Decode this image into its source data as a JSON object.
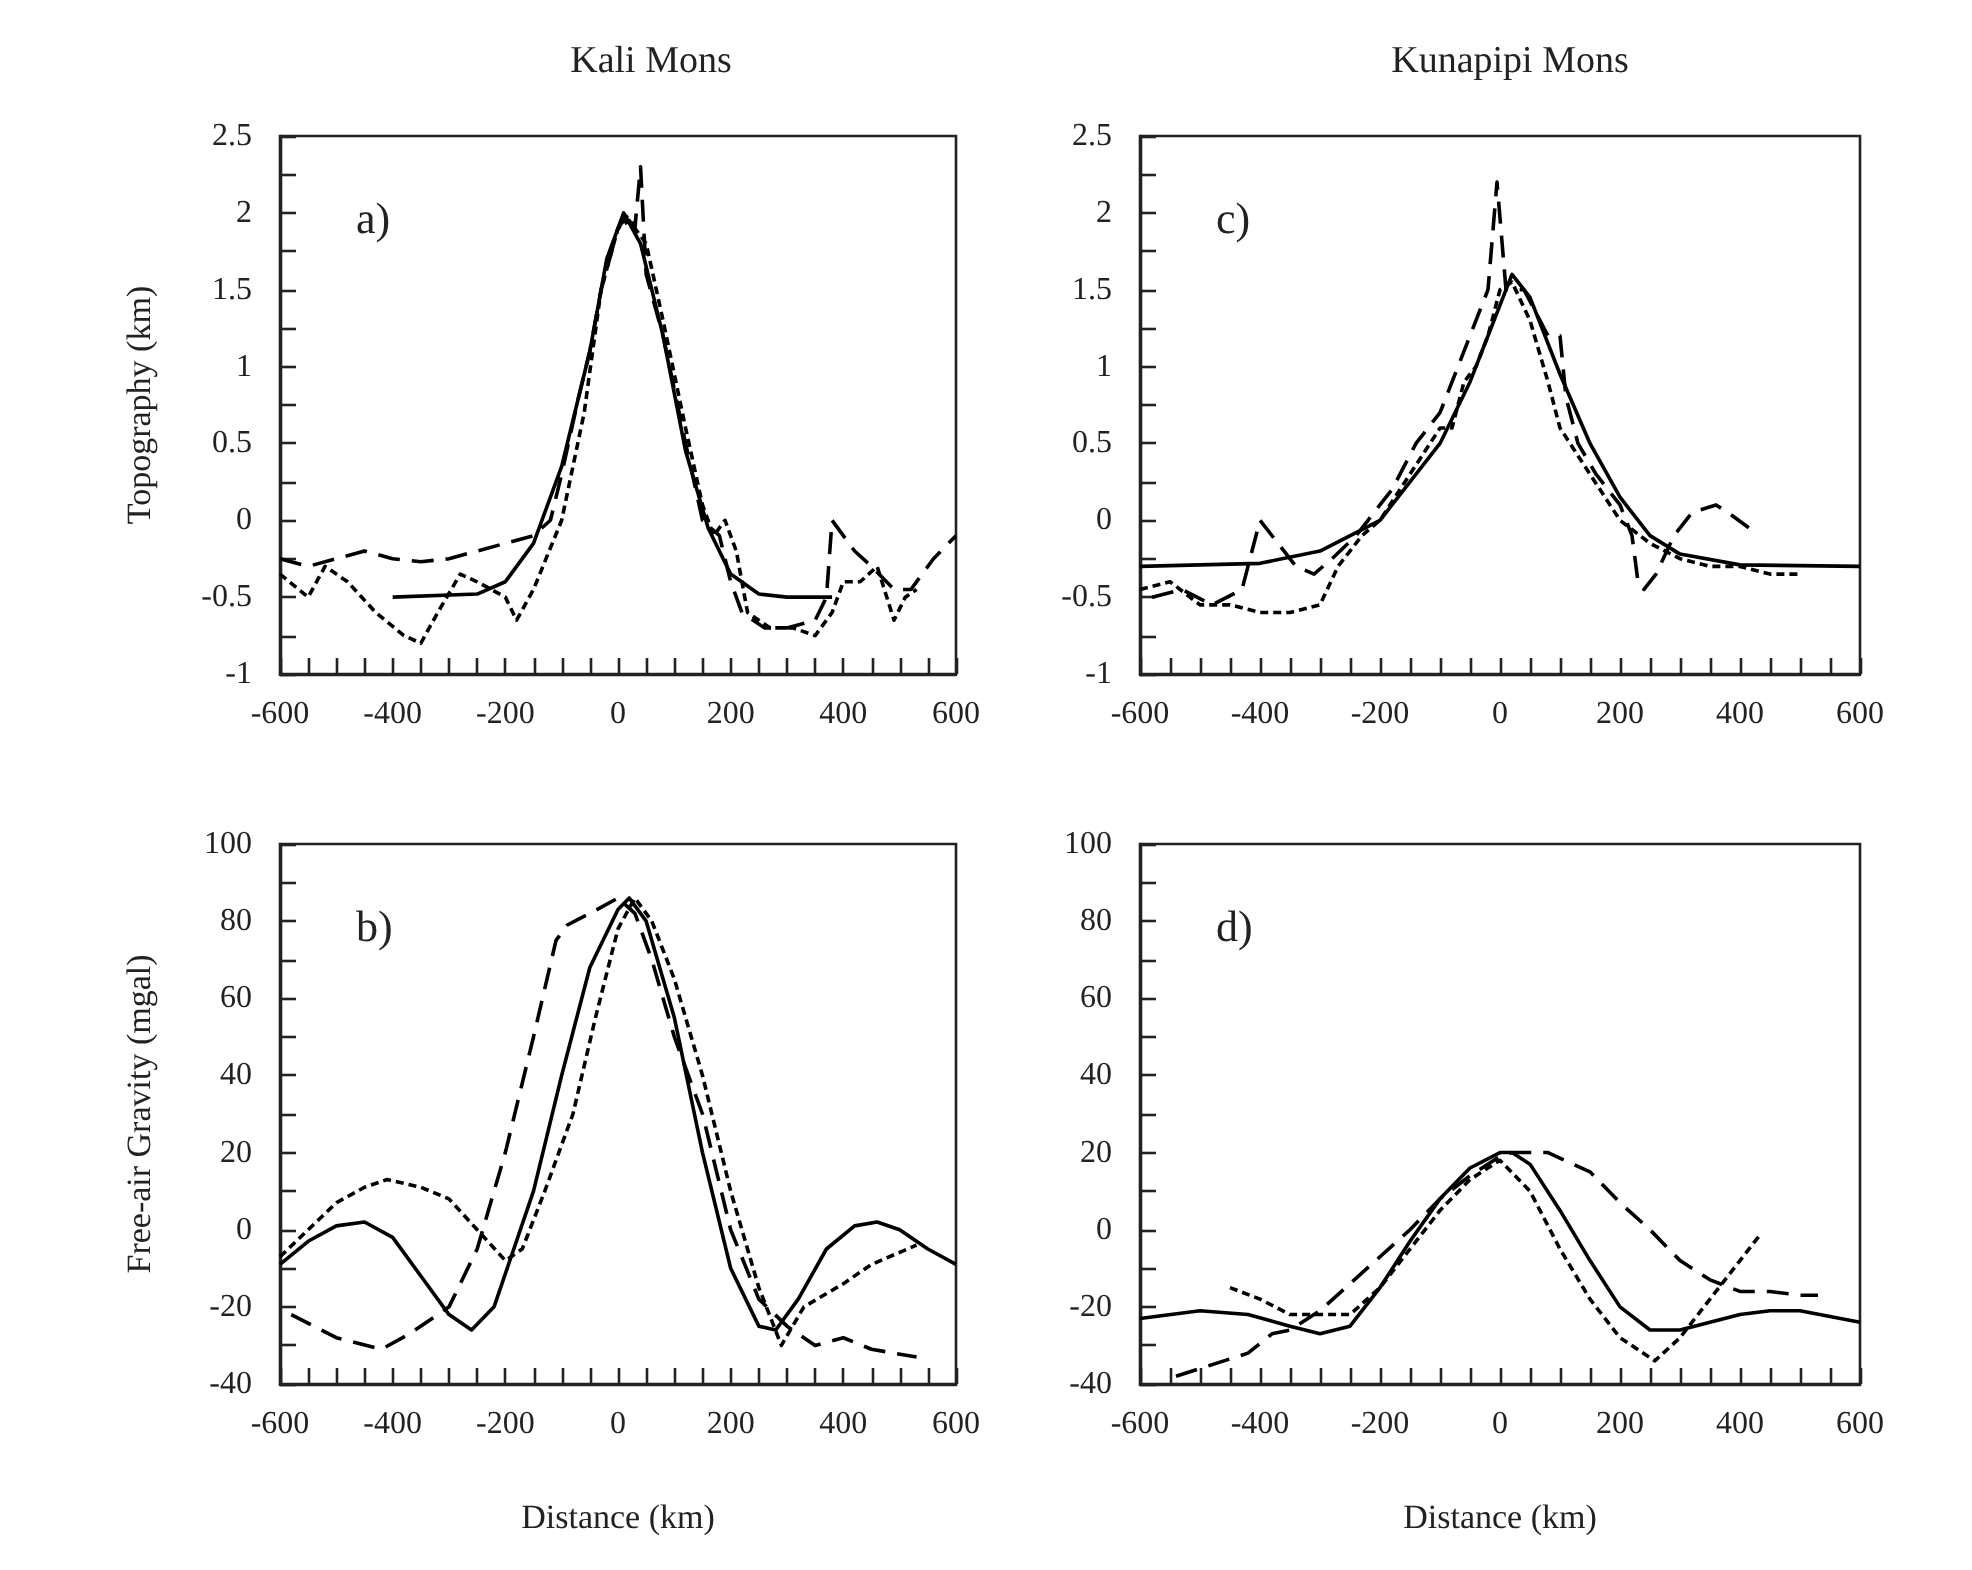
{
  "chart_data": [
    {
      "type": "line",
      "title": "Kali Mons",
      "ylabel": "Topography (km)",
      "annotations": [
        "a)"
      ],
      "xlim": [
        -600,
        600
      ],
      "ylim": [
        -1,
        2.5
      ],
      "xticks": [
        -600,
        {
          "value": -550,
          "label": null
        },
        {
          "value": -500,
          "label": null
        },
        {
          "value": -450,
          "label": null
        },
        -400,
        {
          "value": -350,
          "label": null
        },
        {
          "value": -300,
          "label": null
        },
        {
          "value": -250,
          "label": null
        },
        -200,
        {
          "value": -150,
          "label": null
        },
        {
          "value": -100,
          "label": null
        },
        {
          "value": -50,
          "label": null
        },
        0,
        {
          "value": 50,
          "label": null
        },
        {
          "value": 100,
          "label": null
        },
        {
          "value": 150,
          "label": null
        },
        200,
        {
          "value": 250,
          "label": null
        },
        {
          "value": 300,
          "label": null
        },
        {
          "value": 350,
          "label": null
        },
        400,
        {
          "value": 450,
          "label": null
        },
        {
          "value": 500,
          "label": null
        },
        {
          "value": 550,
          "label": null
        },
        600
      ],
      "yticks": [
        -1,
        {
          "value": -0.75,
          "label": null
        },
        -0.5,
        {
          "value": -0.25,
          "label": null
        },
        0,
        {
          "value": 0.25,
          "label": null
        },
        0.5,
        {
          "value": 0.75,
          "label": null
        },
        1,
        {
          "value": 1.25,
          "label": null
        },
        1.5,
        {
          "value": 1.75,
          "label": null
        },
        2,
        {
          "value": 2.25,
          "label": null
        },
        2.5
      ],
      "grid": false,
      "marker": "none",
      "series": [
        {
          "color": "#000000",
          "line_style": "solid",
          "x": [
            -400,
            -250,
            -200,
            -150,
            -100,
            -50,
            -20,
            10,
            40,
            80,
            120,
            160,
            200,
            250,
            300,
            380
          ],
          "values": [
            -0.5,
            -0.48,
            -0.4,
            -0.15,
            0.35,
            1.1,
            1.7,
            2.0,
            1.8,
            1.2,
            0.45,
            -0.05,
            -0.35,
            -0.48,
            -0.5,
            -0.5
          ]
        },
        {
          "color": "#000000",
          "line_style": "dashed",
          "x": [
            -600,
            -550,
            -500,
            -450,
            -400,
            -350,
            -300,
            -250,
            -200,
            -150,
            -120,
            -100,
            -70,
            -50,
            -30,
            0,
            20,
            30,
            40,
            50,
            80,
            120,
            150,
            180,
            200,
            220,
            260,
            300,
            350,
            370,
            380,
            420,
            450,
            490,
            520,
            560,
            600
          ],
          "values": [
            -0.25,
            -0.3,
            -0.25,
            -0.2,
            -0.25,
            -0.27,
            -0.25,
            -0.2,
            -0.15,
            -0.1,
            0.0,
            0.3,
            0.8,
            1.1,
            1.5,
            1.9,
            2.0,
            1.9,
            2.3,
            1.6,
            1.2,
            0.5,
            0.0,
            -0.1,
            -0.4,
            -0.6,
            -0.7,
            -0.7,
            -0.65,
            -0.5,
            0.0,
            -0.2,
            -0.3,
            -0.45,
            -0.45,
            -0.25,
            -0.1
          ]
        },
        {
          "color": "#000000",
          "line_style": "dotted",
          "x": [
            -600,
            -550,
            -520,
            -480,
            -430,
            -380,
            -350,
            -320,
            -280,
            -250,
            -200,
            -180,
            -150,
            -100,
            -60,
            -30,
            0,
            20,
            50,
            80,
            120,
            150,
            170,
            190,
            210,
            230,
            270,
            310,
            350,
            380,
            400,
            430,
            460,
            490,
            510,
            530
          ],
          "values": [
            -0.35,
            -0.5,
            -0.3,
            -0.4,
            -0.6,
            -0.75,
            -0.8,
            -0.6,
            -0.35,
            -0.4,
            -0.5,
            -0.65,
            -0.45,
            0.0,
            0.7,
            1.5,
            1.9,
            1.95,
            1.8,
            1.3,
            0.6,
            0.1,
            -0.1,
            0.0,
            -0.2,
            -0.6,
            -0.7,
            -0.7,
            -0.75,
            -0.6,
            -0.4,
            -0.4,
            -0.3,
            -0.65,
            -0.5,
            -0.45
          ]
        }
      ]
    },
    {
      "type": "line",
      "title": "Kunapipi Mons",
      "annotations": [
        "c)"
      ],
      "xlim": [
        -600,
        600
      ],
      "ylim": [
        -1,
        2.5
      ],
      "xticks": [
        -600,
        {
          "value": -550,
          "label": null
        },
        {
          "value": -500,
          "label": null
        },
        {
          "value": -450,
          "label": null
        },
        -400,
        {
          "value": -350,
          "label": null
        },
        {
          "value": -300,
          "label": null
        },
        {
          "value": -250,
          "label": null
        },
        -200,
        {
          "value": -150,
          "label": null
        },
        {
          "value": -100,
          "label": null
        },
        {
          "value": -50,
          "label": null
        },
        0,
        {
          "value": 50,
          "label": null
        },
        {
          "value": 100,
          "label": null
        },
        {
          "value": 150,
          "label": null
        },
        200,
        {
          "value": 250,
          "label": null
        },
        {
          "value": 300,
          "label": null
        },
        {
          "value": 350,
          "label": null
        },
        400,
        {
          "value": 450,
          "label": null
        },
        {
          "value": 500,
          "label": null
        },
        {
          "value": 550,
          "label": null
        },
        600
      ],
      "yticks": [
        -1,
        {
          "value": -0.75,
          "label": null
        },
        -0.5,
        {
          "value": -0.25,
          "label": null
        },
        0,
        {
          "value": 0.25,
          "label": null
        },
        0.5,
        {
          "value": 0.75,
          "label": null
        },
        1,
        {
          "value": 1.25,
          "label": null
        },
        1.5,
        {
          "value": 1.75,
          "label": null
        },
        2,
        {
          "value": 2.25,
          "label": null
        },
        2.5
      ],
      "grid": false,
      "marker": "none",
      "series": [
        {
          "color": "#000000",
          "line_style": "solid",
          "x": [
            -600,
            -400,
            -300,
            -200,
            -100,
            -50,
            0,
            20,
            50,
            100,
            150,
            200,
            250,
            300,
            400,
            600
          ],
          "values": [
            -0.3,
            -0.28,
            -0.2,
            0.0,
            0.5,
            0.9,
            1.4,
            1.6,
            1.45,
            0.95,
            0.5,
            0.15,
            -0.1,
            -0.22,
            -0.29,
            -0.3
          ]
        },
        {
          "color": "#000000",
          "line_style": "dashed",
          "x": [
            -580,
            -530,
            -480,
            -430,
            -400,
            -370,
            -340,
            -310,
            -280,
            -240,
            -220,
            -180,
            -140,
            -100,
            -80,
            -50,
            -20,
            -5,
            10,
            40,
            80,
            100,
            110,
            130,
            160,
            200,
            220,
            230,
            240,
            260,
            290,
            320,
            360,
            380,
            415
          ],
          "values": [
            -0.5,
            -0.45,
            -0.55,
            -0.45,
            0.0,
            -0.15,
            -0.3,
            -0.35,
            -0.25,
            -0.1,
            0.0,
            0.2,
            0.5,
            0.7,
            0.9,
            1.2,
            1.5,
            2.2,
            1.5,
            1.5,
            1.2,
            1.2,
            0.8,
            0.5,
            0.3,
            0.1,
            -0.1,
            -0.4,
            -0.45,
            -0.35,
            -0.1,
            0.05,
            0.1,
            0.05,
            -0.05
          ]
        },
        {
          "color": "#000000",
          "line_style": "dotted",
          "x": [
            -600,
            -550,
            -500,
            -450,
            -400,
            -350,
            -300,
            -270,
            -250,
            -230,
            -200,
            -150,
            -100,
            -80,
            -60,
            -40,
            -20,
            0,
            20,
            50,
            80,
            100,
            150,
            200,
            250,
            300,
            350,
            400,
            450,
            500
          ],
          "values": [
            -0.45,
            -0.4,
            -0.55,
            -0.55,
            -0.6,
            -0.6,
            -0.55,
            -0.3,
            -0.2,
            -0.1,
            0.0,
            0.3,
            0.6,
            0.6,
            0.9,
            1.0,
            1.2,
            1.5,
            1.55,
            1.3,
            0.9,
            0.6,
            0.3,
            0.0,
            -0.15,
            -0.25,
            -0.3,
            -0.3,
            -0.35,
            -0.35
          ]
        }
      ]
    },
    {
      "type": "line",
      "xlabel": "Distance (km)",
      "ylabel": "Free-air Gravity (mgal)",
      "annotations": [
        "b)"
      ],
      "xlim": [
        -600,
        600
      ],
      "ylim": [
        -40,
        100
      ],
      "xticks": [
        -600,
        {
          "value": -550,
          "label": null
        },
        {
          "value": -500,
          "label": null
        },
        {
          "value": -450,
          "label": null
        },
        -400,
        {
          "value": -350,
          "label": null
        },
        {
          "value": -300,
          "label": null
        },
        {
          "value": -250,
          "label": null
        },
        -200,
        {
          "value": -150,
          "label": null
        },
        {
          "value": -100,
          "label": null
        },
        {
          "value": -50,
          "label": null
        },
        0,
        {
          "value": 50,
          "label": null
        },
        {
          "value": 100,
          "label": null
        },
        {
          "value": 150,
          "label": null
        },
        200,
        {
          "value": 250,
          "label": null
        },
        {
          "value": 300,
          "label": null
        },
        {
          "value": 350,
          "label": null
        },
        400,
        {
          "value": 450,
          "label": null
        },
        {
          "value": 500,
          "label": null
        },
        {
          "value": 550,
          "label": null
        },
        600
      ],
      "yticks": [
        -40,
        {
          "value": -30,
          "label": null
        },
        -20,
        {
          "value": -10,
          "label": null
        },
        0,
        {
          "value": 10,
          "label": null
        },
        20,
        {
          "value": 30,
          "label": null
        },
        40,
        {
          "value": 50,
          "label": null
        },
        60,
        {
          "value": 70,
          "label": null
        },
        80,
        {
          "value": 90,
          "label": null
        },
        100
      ],
      "grid": false,
      "marker": "none",
      "series": [
        {
          "color": "#000000",
          "line_style": "solid",
          "x": [
            -600,
            -550,
            -500,
            -450,
            -400,
            -350,
            -300,
            -260,
            -220,
            -150,
            -100,
            -50,
            0,
            20,
            50,
            100,
            150,
            200,
            250,
            280,
            320,
            370,
            420,
            460,
            500,
            550,
            600
          ],
          "values": [
            -9,
            -3,
            1,
            2,
            -2,
            -12,
            -22,
            -26,
            -20,
            10,
            40,
            68,
            83,
            86,
            80,
            55,
            20,
            -10,
            -25,
            -26,
            -18,
            -5,
            1,
            2,
            0,
            -5,
            -9
          ]
        },
        {
          "color": "#000000",
          "line_style": "dashed",
          "x": [
            -580,
            -500,
            -420,
            -370,
            -300,
            -250,
            -200,
            -150,
            -110,
            -90,
            -50,
            0,
            30,
            60,
            100,
            150,
            200,
            250,
            300,
            350,
            400,
            450,
            530
          ],
          "values": [
            -22,
            -28,
            -31,
            -27,
            -20,
            -5,
            20,
            50,
            75,
            79,
            82,
            86,
            82,
            70,
            50,
            30,
            0,
            -18,
            -25,
            -30,
            -28,
            -31,
            -33
          ]
        },
        {
          "color": "#000000",
          "line_style": "dotted",
          "x": [
            -600,
            -550,
            -500,
            -450,
            -410,
            -350,
            -300,
            -250,
            -200,
            -170,
            -130,
            -80,
            -40,
            0,
            30,
            60,
            100,
            150,
            200,
            250,
            290,
            330,
            400,
            450,
            530
          ],
          "values": [
            -7,
            0,
            7,
            11,
            13,
            11,
            8,
            0,
            -8,
            -5,
            10,
            30,
            55,
            78,
            86,
            80,
            65,
            40,
            10,
            -15,
            -30,
            -20,
            -14,
            -9,
            -4
          ]
        }
      ]
    },
    {
      "type": "line",
      "xlabel": "Distance (km)",
      "annotations": [
        "d)"
      ],
      "xlim": [
        -600,
        600
      ],
      "ylim": [
        -40,
        100
      ],
      "xticks": [
        -600,
        {
          "value": -550,
          "label": null
        },
        {
          "value": -500,
          "label": null
        },
        {
          "value": -450,
          "label": null
        },
        -400,
        {
          "value": -350,
          "label": null
        },
        {
          "value": -300,
          "label": null
        },
        {
          "value": -250,
          "label": null
        },
        -200,
        {
          "value": -150,
          "label": null
        },
        {
          "value": -100,
          "label": null
        },
        {
          "value": -50,
          "label": null
        },
        0,
        {
          "value": 50,
          "label": null
        },
        {
          "value": 100,
          "label": null
        },
        {
          "value": 150,
          "label": null
        },
        200,
        {
          "value": 250,
          "label": null
        },
        {
          "value": 300,
          "label": null
        },
        {
          "value": 350,
          "label": null
        },
        400,
        {
          "value": 450,
          "label": null
        },
        {
          "value": 500,
          "label": null
        },
        {
          "value": 550,
          "label": null
        },
        600
      ],
      "yticks": [
        -40,
        {
          "value": -30,
          "label": null
        },
        -20,
        {
          "value": -10,
          "label": null
        },
        0,
        {
          "value": 10,
          "label": null
        },
        20,
        {
          "value": 30,
          "label": null
        },
        40,
        {
          "value": 50,
          "label": null
        },
        60,
        {
          "value": 70,
          "label": null
        },
        80,
        {
          "value": 90,
          "label": null
        },
        100
      ],
      "grid": false,
      "marker": "none",
      "series": [
        {
          "color": "#000000",
          "line_style": "solid",
          "x": [
            -600,
            -500,
            -420,
            -350,
            -300,
            -250,
            -200,
            -150,
            -100,
            -50,
            0,
            20,
            50,
            100,
            150,
            200,
            250,
            300,
            350,
            400,
            450,
            500,
            600
          ],
          "values": [
            -23,
            -21,
            -22,
            -25,
            -27,
            -25,
            -15,
            -3,
            8,
            16,
            20,
            20,
            17,
            5,
            -8,
            -20,
            -26,
            -26,
            -24,
            -22,
            -21,
            -21,
            -24
          ]
        },
        {
          "color": "#000000",
          "line_style": "dashed",
          "x": [
            -540,
            -500,
            -420,
            -380,
            -350,
            -300,
            -250,
            -200,
            -150,
            -100,
            -50,
            0,
            20,
            80,
            150,
            200,
            250,
            300,
            350,
            400,
            450,
            500,
            530
          ],
          "values": [
            -38,
            -36,
            -32,
            -27,
            -26,
            -21,
            -14,
            -7,
            0,
            8,
            14,
            19,
            20,
            20,
            15,
            7,
            0,
            -8,
            -13,
            -16,
            -16,
            -17,
            -17
          ]
        },
        {
          "color": "#000000",
          "line_style": "dotted",
          "x": [
            -450,
            -400,
            -350,
            -300,
            -250,
            -200,
            -150,
            -100,
            -50,
            0,
            50,
            100,
            150,
            200,
            258,
            300,
            350,
            400,
            435
          ],
          "values": [
            -15,
            -18,
            -22,
            -22,
            -22,
            -15,
            -5,
            5,
            13,
            18,
            10,
            -5,
            -18,
            -28,
            -34,
            -28,
            -18,
            -8,
            -1
          ]
        }
      ]
    }
  ]
}
